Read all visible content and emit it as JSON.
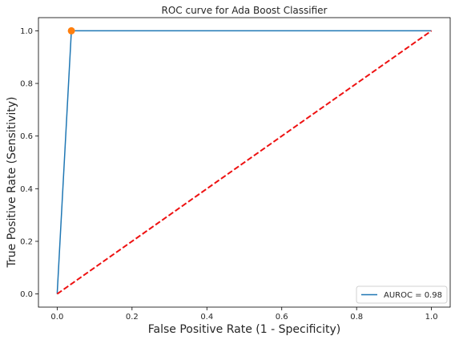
{
  "chart_data": {
    "type": "line",
    "title": "ROC curve for Ada Boost Classifier",
    "xlabel": "False Positive Rate (1 - Specificity)",
    "ylabel": "True Positive Rate (Sensitivity)",
    "xlim": [
      -0.05,
      1.05
    ],
    "ylim": [
      -0.05,
      1.05
    ],
    "xticks": [
      0.0,
      0.2,
      0.4,
      0.6,
      0.8,
      1.0
    ],
    "yticks": [
      0.0,
      0.2,
      0.4,
      0.6,
      0.8,
      1.0
    ],
    "tick_labels_x": [
      "0.0",
      "0.2",
      "0.4",
      "0.6",
      "0.8",
      "1.0"
    ],
    "tick_labels_y": [
      "0.0",
      "0.2",
      "0.4",
      "0.6",
      "0.8",
      "1.0"
    ],
    "grid": false,
    "legend_position": "lower-right",
    "series": [
      {
        "name": "AUROC = 0.98",
        "kind": "line",
        "color": "#1f77b4",
        "x": [
          0.0,
          0.038,
          1.0
        ],
        "y": [
          0.0,
          1.0,
          1.0
        ]
      },
      {
        "kind": "dashed-line",
        "color": "#ee1111",
        "x": [
          0.0,
          1.0
        ],
        "y": [
          0.0,
          1.0
        ]
      },
      {
        "kind": "marker",
        "color": "#ff7f0e",
        "x": [
          0.038
        ],
        "y": [
          1.0
        ]
      }
    ]
  }
}
